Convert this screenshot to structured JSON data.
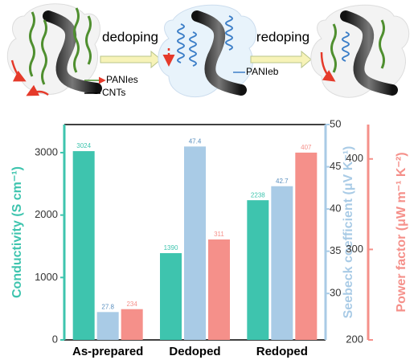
{
  "schematic": {
    "step1": "dedoping",
    "step2": "redoping",
    "label_paniES": "PANIes",
    "label_cnts": "CNTs",
    "label_panieb": "PANIeb"
  },
  "chart_data": {
    "type": "bar",
    "categories": [
      "As-prepared",
      "Dedoped",
      "Redoped"
    ],
    "series": [
      {
        "name": "Conductivity (S cm⁻¹)",
        "color": "#3ec4ae",
        "values": [
          3024,
          1390,
          2238
        ],
        "axis": "y"
      },
      {
        "name": "Seebeck coefficient (μV K⁻¹)",
        "color": "#a9cbe6",
        "values": [
          27.8,
          47.4,
          42.7
        ],
        "axis": "y2"
      },
      {
        "name": "Power factor (μW m⁻¹ K⁻²)",
        "color": "#f5908a",
        "values": [
          234,
          311,
          407
        ],
        "axis": "y3"
      }
    ],
    "ylim": [
      0,
      3450
    ],
    "yticks": [
      0,
      1000,
      2000,
      3000
    ],
    "y2lim": [
      24.5,
      50
    ],
    "y2ticks": [
      30,
      35,
      40,
      45,
      50
    ],
    "y3lim": [
      200,
      438
    ],
    "y3ticks": [
      200,
      300,
      400
    ]
  }
}
